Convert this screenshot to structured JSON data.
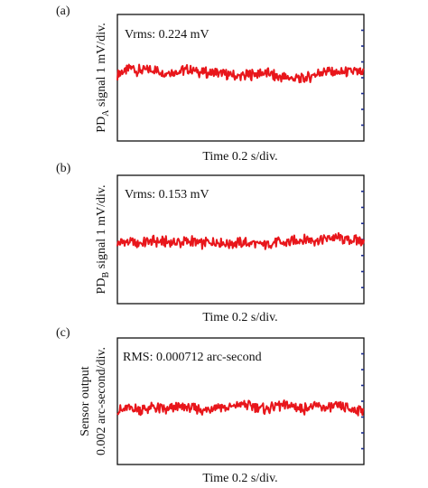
{
  "figure": {
    "trace_color": "#e8161b",
    "tick_color": "#1a2a8c"
  },
  "chart_data": [
    {
      "type": "line",
      "panel_label": "(a)",
      "annotation": "Vrms: 0.224 mV",
      "xlabel": "Time 0.2 s/div.",
      "ylabel_main": "PD",
      "ylabel_sub": "A",
      "ylabel_rest": " signal  1 mV/div.",
      "ylabel_line2": "",
      "xlim": [
        0,
        10
      ],
      "ylim": [
        -4,
        4
      ],
      "x_divisions": 10,
      "y_divisions": 8,
      "series": [
        {
          "x": [
            0,
            0.5,
            1,
            1.5,
            2,
            2.5,
            3,
            3.5,
            4,
            4.5,
            5,
            5.5,
            6,
            6.5,
            7,
            7.5,
            8,
            8.5,
            9,
            9.5,
            10
          ],
          "values": [
            0.2,
            0.6,
            0.4,
            0.5,
            0.3,
            0.45,
            0.5,
            0.3,
            0.35,
            0.2,
            0.05,
            0.2,
            0.3,
            0.05,
            0.0,
            -0.1,
            0.2,
            0.45,
            0.3,
            0.45,
            0.2
          ]
        }
      ]
    },
    {
      "type": "line",
      "panel_label": "(b)",
      "annotation": "Vrms: 0.153 mV",
      "xlabel": "Time 0.2 s/div.",
      "ylabel_main": "PD",
      "ylabel_sub": "B",
      "ylabel_rest": " signal  1 mV/div.",
      "ylabel_line2": "",
      "xlim": [
        0,
        10
      ],
      "ylim": [
        -4,
        4
      ],
      "x_divisions": 10,
      "y_divisions": 8,
      "series": [
        {
          "x": [
            0,
            0.5,
            1,
            1.5,
            2,
            2.5,
            3,
            3.5,
            4,
            4.5,
            5,
            5.5,
            6,
            6.5,
            7,
            7.5,
            8,
            8.5,
            9,
            9.5,
            10
          ],
          "values": [
            -0.2,
            -0.15,
            -0.25,
            -0.1,
            -0.15,
            -0.2,
            -0.1,
            -0.25,
            -0.15,
            -0.3,
            -0.2,
            -0.25,
            -0.3,
            -0.2,
            -0.15,
            0.0,
            -0.05,
            0.05,
            0.1,
            -0.05,
            -0.1
          ]
        }
      ]
    },
    {
      "type": "line",
      "panel_label": "(c)",
      "annotation": "RMS: 0.000712 arc-second",
      "xlabel": "Time 0.2 s/div.",
      "ylabel_main": "Sensor output",
      "ylabel_sub": "",
      "ylabel_rest": "",
      "ylabel_line2": "0.002 arc-second/div.",
      "xlim": [
        0,
        10
      ],
      "ylim": [
        -4,
        4
      ],
      "x_divisions": 10,
      "y_divisions": 8,
      "series": [
        {
          "x": [
            0,
            0.5,
            1,
            1.5,
            2,
            2.5,
            3,
            3.5,
            4,
            4.5,
            5,
            5.5,
            6,
            6.5,
            7,
            7.5,
            8,
            8.5,
            9,
            9.5,
            10
          ],
          "values": [
            -0.6,
            -0.45,
            -0.5,
            -0.4,
            -0.55,
            -0.35,
            -0.45,
            -0.6,
            -0.3,
            -0.4,
            -0.2,
            -0.35,
            -0.5,
            -0.3,
            -0.25,
            -0.5,
            -0.3,
            -0.45,
            -0.35,
            -0.55,
            -0.5
          ]
        }
      ]
    }
  ]
}
